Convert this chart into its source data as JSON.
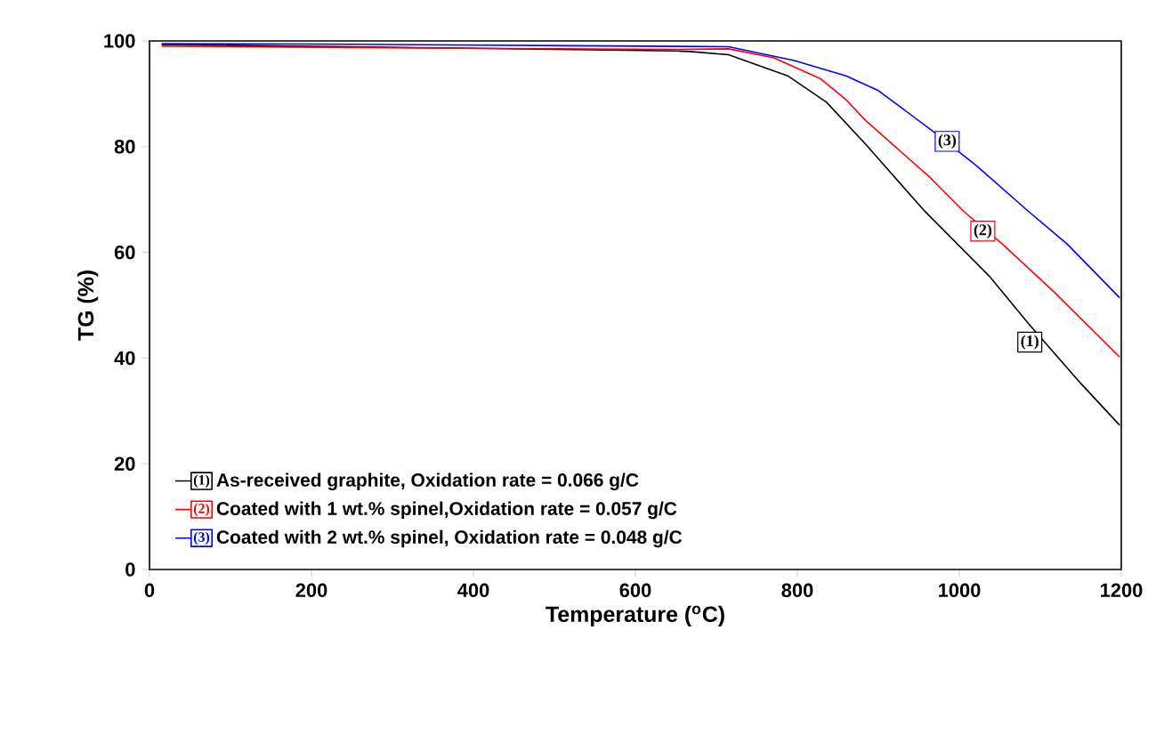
{
  "chart_data": {
    "type": "line",
    "xlabel": "Temperature ($^{o}$C)",
    "ylabel": "TG (%)",
    "xlim": [
      0,
      1200
    ],
    "ylim": [
      0,
      100
    ],
    "xticks": [
      0,
      200,
      400,
      600,
      800,
      1000,
      1200
    ],
    "yticks": [
      0,
      20,
      40,
      60,
      80,
      100
    ],
    "grid": false,
    "legend": "bottom left",
    "marker": "none",
    "line_style": "solid",
    "series": [
      {
        "name": "As-received graphite, Oxidation rate = 0.066 g/C",
        "color": "#000000",
        "x": [
          15,
          200,
          650,
          667,
          715,
          788,
          836,
          884,
          956,
          1037,
          1085,
          1150,
          1198
        ],
        "values": [
          99.3,
          99,
          98.1,
          98,
          97.4,
          93.4,
          88.4,
          80.5,
          68,
          55.5,
          46.6,
          35.2,
          27.3
        ]
      },
      {
        "name": "Coated with 1 wt.% spinel,Oxidation rate = 0.057 g/C",
        "color": "#ff0000",
        "x": [
          15,
          200,
          400,
          650,
          715,
          771,
          828,
          860,
          884,
          965,
          1005,
          1053,
          1117,
          1198
        ],
        "values": [
          99,
          98.8,
          98.6,
          98.4,
          98.5,
          96.8,
          92.9,
          88.9,
          85,
          74,
          67.8,
          61.6,
          52.5,
          40.2
        ]
      },
      {
        "name": "Coated with 2 wt.% spinel, Oxidation rate = 0.048 g/C",
        "color": "#0000ff",
        "x": [
          15,
          200,
          514,
          715,
          796,
          860,
          900,
          965,
          1021,
          1085,
          1133,
          1198
        ],
        "values": [
          99.5,
          99.4,
          99.1,
          98.9,
          96.3,
          93.4,
          90.6,
          83.2,
          76.4,
          67.8,
          61.6,
          51.4
        ]
      }
    ],
    "annotations": [
      {
        "text": "(1)",
        "x": 1087,
        "y": 43
      },
      {
        "text": "(2)",
        "x": 1029,
        "y": 64
      },
      {
        "text": "(3)",
        "x": 985,
        "y": 81
      }
    ]
  }
}
